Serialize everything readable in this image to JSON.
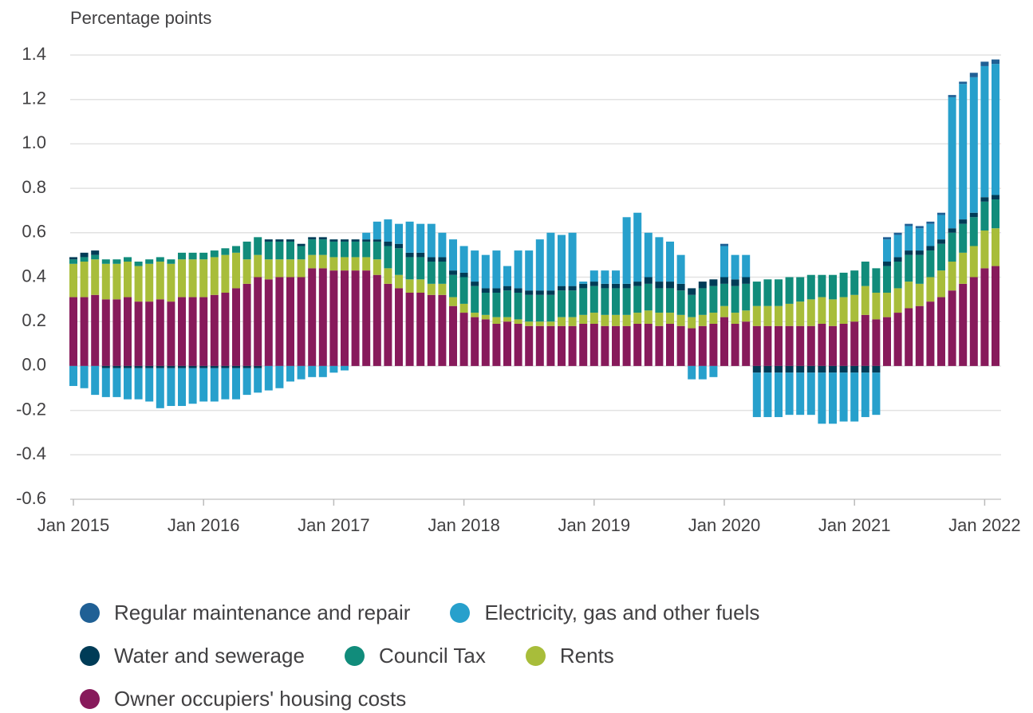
{
  "chart_data": {
    "type": "stacked_bar",
    "y_label": "Percentage points",
    "categories": [
      "Jan 2015",
      null,
      null,
      null,
      null,
      null,
      null,
      null,
      null,
      null,
      null,
      null,
      "Jan 2016",
      null,
      null,
      null,
      null,
      null,
      null,
      null,
      null,
      null,
      null,
      null,
      "Jan 2017",
      null,
      null,
      null,
      null,
      null,
      null,
      null,
      null,
      null,
      null,
      null,
      "Jan 2018",
      null,
      null,
      null,
      null,
      null,
      null,
      null,
      null,
      null,
      null,
      null,
      "Jan 2019",
      null,
      null,
      null,
      null,
      null,
      null,
      null,
      null,
      null,
      null,
      null,
      "Jan 2020",
      null,
      null,
      null,
      null,
      null,
      null,
      null,
      null,
      null,
      null,
      null,
      "Jan 2021",
      null,
      null,
      null,
      null,
      null,
      null,
      null,
      null,
      null,
      null,
      null,
      "Jan 2022",
      null
    ],
    "ylim": [
      -0.6,
      1.4
    ],
    "yticks": [
      -0.6,
      -0.4,
      -0.2,
      {
        "value": 0,
        "label": "0.0"
      },
      0.2,
      0.4,
      0.6,
      0.8,
      {
        "value": 1,
        "label": "1.0"
      },
      1.2,
      1.4
    ],
    "grid": true,
    "series": [
      {
        "name": "Regular maintenance and repair",
        "color": "#206095",
        "values": [
          0,
          0,
          0,
          0,
          0,
          0,
          0,
          0,
          0,
          0,
          0,
          0,
          0,
          0,
          0,
          0,
          0,
          0,
          0,
          0,
          0,
          0,
          0,
          0,
          0,
          0,
          0,
          0,
          0,
          0,
          0,
          0,
          0,
          0,
          0,
          0,
          0,
          0,
          0,
          0,
          0,
          0,
          0,
          0,
          0,
          0,
          0,
          0,
          0,
          0,
          0,
          0,
          0,
          0,
          0,
          0,
          0,
          0,
          0,
          0,
          0.01,
          0,
          0,
          0,
          0,
          0,
          0,
          0,
          0,
          0,
          0,
          0,
          0,
          0,
          0,
          0.01,
          0.01,
          0.01,
          0.01,
          0.01,
          0.01,
          0.01,
          0.01,
          0.02,
          0.02,
          0.02
        ]
      },
      {
        "name": "Electricity, gas and other fuels",
        "color": "#27a0cc",
        "values": [
          -0.09,
          -0.1,
          -0.13,
          -0.13,
          -0.13,
          -0.14,
          -0.14,
          -0.15,
          -0.18,
          -0.17,
          -0.17,
          -0.16,
          -0.15,
          -0.15,
          -0.14,
          -0.14,
          -0.12,
          -0.11,
          -0.11,
          -0.1,
          -0.07,
          -0.06,
          -0.05,
          -0.05,
          -0.03,
          -0.02,
          0,
          0.03,
          0.08,
          0.1,
          0.09,
          0.14,
          0.13,
          0.15,
          0.11,
          0.14,
          0.12,
          0.14,
          0.15,
          0.17,
          0.09,
          0.17,
          0.18,
          0.23,
          0.26,
          0.23,
          0.24,
          0.01,
          0.05,
          0.06,
          0.06,
          0.3,
          0.31,
          0.2,
          0.2,
          0.18,
          0.13,
          -0.06,
          -0.06,
          -0.05,
          0.14,
          0.11,
          0.1,
          -0.2,
          -0.2,
          -0.2,
          -0.19,
          -0.19,
          -0.19,
          -0.23,
          -0.23,
          -0.22,
          -0.22,
          -0.2,
          -0.19,
          0.1,
          0.1,
          0.11,
          0.1,
          0.1,
          0.11,
          0.59,
          0.61,
          0.61,
          0.59,
          0.59
        ]
      },
      {
        "name": "Water and sewerage",
        "color": "#003c57",
        "values": [
          0.01,
          0.02,
          0.02,
          -0.01,
          -0.01,
          -0.01,
          -0.01,
          -0.01,
          -0.01,
          -0.01,
          -0.01,
          -0.01,
          -0.01,
          -0.01,
          -0.01,
          -0.01,
          -0.01,
          -0.01,
          0.01,
          0.01,
          0.01,
          0.01,
          0.01,
          0.01,
          0.01,
          0.01,
          0.01,
          0.01,
          0.01,
          0.02,
          0.02,
          0.02,
          0.02,
          0.02,
          0.02,
          0.02,
          0.02,
          0.02,
          0.02,
          0.02,
          0.02,
          0.02,
          0.02,
          0.02,
          0.02,
          0.02,
          0.02,
          0.02,
          0.02,
          0.02,
          0.02,
          0.02,
          0.02,
          0.03,
          0.03,
          0.03,
          0.03,
          0.03,
          0.03,
          0.03,
          0.03,
          0.03,
          0.03,
          -0.03,
          -0.03,
          -0.03,
          -0.03,
          -0.03,
          -0.03,
          -0.03,
          -0.03,
          -0.03,
          -0.03,
          -0.03,
          -0.03,
          0.02,
          0.02,
          0.02,
          0.02,
          0.02,
          0.02,
          0.02,
          0.02,
          0.02,
          0.02,
          0.02
        ]
      },
      {
        "name": "Council Tax",
        "color": "#118c7b",
        "values": [
          0.02,
          0.02,
          0.02,
          0.02,
          0.02,
          0.02,
          0.02,
          0.02,
          0.02,
          0.02,
          0.03,
          0.03,
          0.03,
          0.03,
          0.03,
          0.03,
          0.08,
          0.08,
          0.08,
          0.08,
          0.08,
          0.06,
          0.07,
          0.07,
          0.07,
          0.07,
          0.07,
          0.07,
          0.08,
          0.1,
          0.12,
          0.1,
          0.1,
          0.1,
          0.1,
          0.1,
          0.12,
          0.12,
          0.1,
          0.11,
          0.12,
          0.12,
          0.12,
          0.12,
          0.12,
          0.12,
          0.12,
          0.12,
          0.12,
          0.12,
          0.12,
          0.12,
          0.12,
          0.12,
          0.11,
          0.11,
          0.11,
          0.1,
          0.12,
          0.12,
          0.1,
          0.12,
          0.12,
          0.11,
          0.12,
          0.12,
          0.12,
          0.11,
          0.11,
          0.1,
          0.11,
          0.11,
          0.11,
          0.11,
          0.11,
          0.12,
          0.12,
          0.12,
          0.13,
          0.12,
          0.12,
          0.13,
          0.13,
          0.13,
          0.13,
          0.13
        ]
      },
      {
        "name": "Rents",
        "color": "#a8bd3a",
        "values": [
          0.15,
          0.16,
          0.16,
          0.16,
          0.16,
          0.16,
          0.16,
          0.17,
          0.17,
          0.17,
          0.17,
          0.17,
          0.17,
          0.17,
          0.17,
          0.16,
          0.11,
          0.1,
          0.09,
          0.08,
          0.08,
          0.08,
          0.06,
          0.06,
          0.06,
          0.06,
          0.06,
          0.06,
          0.07,
          0.07,
          0.06,
          0.06,
          0.06,
          0.05,
          0.05,
          0.04,
          0.04,
          0.02,
          0.02,
          0.03,
          0.02,
          0.02,
          0.02,
          0.02,
          0.02,
          0.04,
          0.04,
          0.04,
          0.05,
          0.05,
          0.05,
          0.05,
          0.05,
          0.06,
          0.06,
          0.05,
          0.05,
          0.05,
          0.05,
          0.05,
          0.05,
          0.05,
          0.05,
          0.09,
          0.09,
          0.09,
          0.1,
          0.11,
          0.12,
          0.12,
          0.12,
          0.12,
          0.12,
          0.13,
          0.12,
          0.11,
          0.11,
          0.12,
          0.1,
          0.11,
          0.12,
          0.13,
          0.14,
          0.14,
          0.17,
          0.17
        ]
      },
      {
        "name": "Owner occupiers' housing costs",
        "color": "#871a5b",
        "values": [
          0.31,
          0.31,
          0.32,
          0.3,
          0.3,
          0.31,
          0.29,
          0.29,
          0.3,
          0.29,
          0.31,
          0.31,
          0.31,
          0.32,
          0.33,
          0.35,
          0.37,
          0.4,
          0.39,
          0.4,
          0.4,
          0.4,
          0.44,
          0.44,
          0.43,
          0.43,
          0.43,
          0.43,
          0.41,
          0.37,
          0.35,
          0.33,
          0.33,
          0.32,
          0.32,
          0.27,
          0.24,
          0.22,
          0.21,
          0.19,
          0.2,
          0.19,
          0.18,
          0.18,
          0.18,
          0.18,
          0.18,
          0.19,
          0.19,
          0.18,
          0.18,
          0.18,
          0.19,
          0.19,
          0.18,
          0.19,
          0.18,
          0.17,
          0.18,
          0.19,
          0.22,
          0.19,
          0.2,
          0.18,
          0.18,
          0.18,
          0.18,
          0.18,
          0.18,
          0.19,
          0.18,
          0.19,
          0.2,
          0.23,
          0.21,
          0.22,
          0.24,
          0.26,
          0.27,
          0.29,
          0.31,
          0.34,
          0.37,
          0.4,
          0.44,
          0.45
        ]
      }
    ]
  }
}
